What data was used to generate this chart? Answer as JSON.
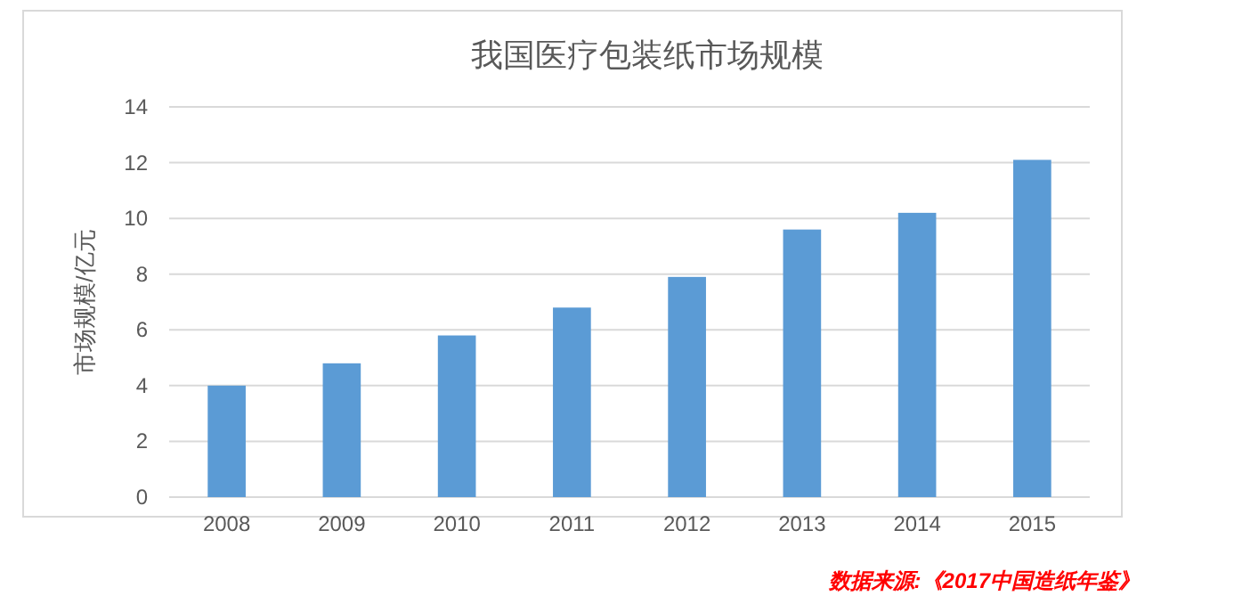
{
  "chart_data": {
    "type": "bar",
    "title": "我国医疗包装纸市场规模",
    "ylabel": "市场规模/亿元",
    "categories": [
      "2008",
      "2009",
      "2010",
      "2011",
      "2012",
      "2013",
      "2014",
      "2015"
    ],
    "values": [
      4.0,
      4.8,
      5.8,
      6.8,
      7.9,
      9.6,
      10.2,
      12.1
    ],
    "color": "#5b9bd5",
    "ylim": [
      0,
      14
    ],
    "yticks": [
      0,
      2,
      4,
      6,
      8,
      10,
      12,
      14
    ],
    "grid": "y",
    "annotations": [
      "数据来源:《2017中国造纸年鉴》"
    ]
  }
}
